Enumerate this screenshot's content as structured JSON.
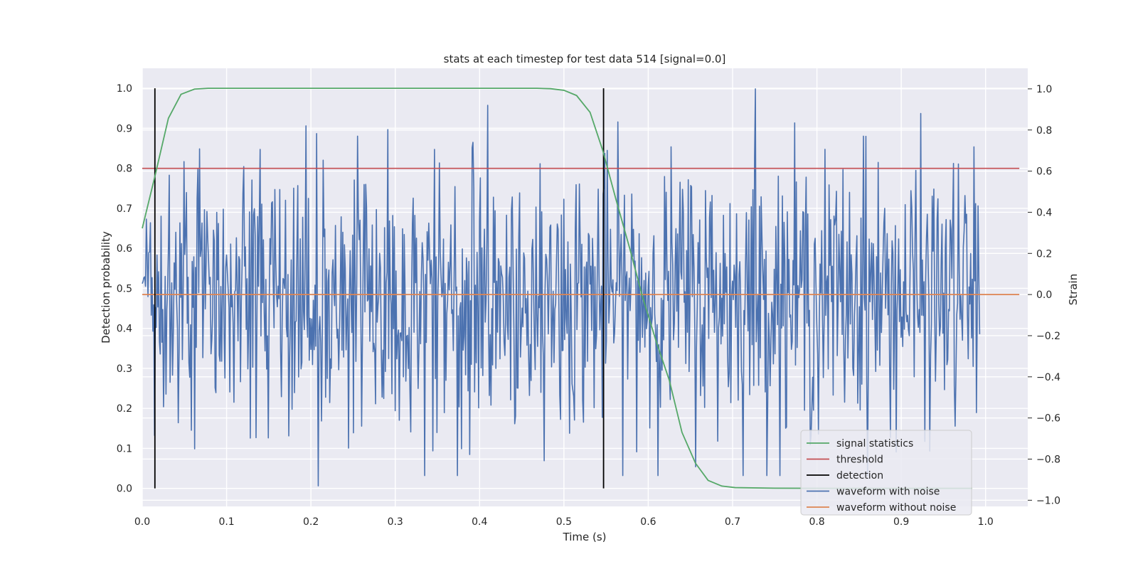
{
  "chart_data": {
    "type": "line",
    "title": "stats at each timestep for test data 514 [signal=0.0]",
    "xlabel": "Time (s)",
    "ylabel": "Detection probability",
    "y2label": "Strain",
    "xlim": [
      0.0,
      1.05
    ],
    "ylim": [
      -0.045,
      1.05
    ],
    "y2lim": [
      -1.03,
      1.1
    ],
    "x_ticks": [
      "0.0",
      "0.1",
      "0.2",
      "0.3",
      "0.4",
      "0.5",
      "0.6",
      "0.7",
      "0.8",
      "0.9",
      "1.0"
    ],
    "y_ticks": [
      "0.0",
      "0.1",
      "0.2",
      "0.3",
      "0.4",
      "0.5",
      "0.6",
      "0.7",
      "0.8",
      "0.9",
      "1.0"
    ],
    "y2_ticks": [
      "−1.0",
      "−0.8",
      "−0.6",
      "−0.4",
      "−0.2",
      "0.0",
      "0.2",
      "0.4",
      "0.6",
      "0.8",
      "1.0"
    ],
    "grid": true,
    "legend_position": "lower right",
    "colors": {
      "signal_statistics": "#55a868",
      "threshold": "#c44e52",
      "detection": "#000000",
      "waveform_with_noise": "#4c72b0",
      "waveform_without_noise": "#dd8452",
      "plot_background": "#eaeaf2",
      "grid": "#ffffff"
    },
    "series": [
      {
        "name": "signal statistics",
        "axis": "left",
        "x": [
          0.0,
          0.015,
          0.031,
          0.046,
          0.062,
          0.078,
          0.1,
          0.2,
          0.3,
          0.4,
          0.468,
          0.484,
          0.5,
          0.515,
          0.531,
          0.546,
          0.562,
          0.578,
          0.593,
          0.609,
          0.625,
          0.64,
          0.656,
          0.671,
          0.687,
          0.703,
          0.75,
          0.8,
          0.85,
          0.9,
          0.95,
          0.984
        ],
        "y": [
          0.65,
          0.78,
          0.925,
          0.985,
          0.998,
          1.0,
          1.0,
          1.0,
          1.0,
          1.0,
          1.0,
          0.999,
          0.995,
          0.982,
          0.94,
          0.845,
          0.72,
          0.6,
          0.48,
          0.37,
          0.27,
          0.14,
          0.063,
          0.02,
          0.006,
          0.002,
          0.0005,
          0.0003,
          0.0002,
          0.0002,
          0.0002,
          0.0002
        ]
      },
      {
        "name": "threshold",
        "axis": "left",
        "x": [
          0.0,
          1.04
        ],
        "y": [
          0.8,
          0.8
        ]
      },
      {
        "name": "detection",
        "axis": "left",
        "x": [
          0.015,
          0.547
        ],
        "y_range": [
          0.0,
          1.0
        ]
      },
      {
        "name": "waveform with noise",
        "axis": "right",
        "x_range": [
          0.0,
          0.993
        ],
        "samples": 1024,
        "y_min": -0.93,
        "y_max": 1.0,
        "y_std": 0.32,
        "peaks": [
          {
            "x": 0.209,
            "y": -0.93
          },
          {
            "x": 0.727,
            "y": 1.0
          },
          {
            "x": 0.194,
            "y": 0.82
          },
          {
            "x": 0.392,
            "y": 0.74
          },
          {
            "x": 0.255,
            "y": 0.77
          },
          {
            "x": 0.062,
            "y": -0.75
          },
          {
            "x": 0.345,
            "y": -0.76
          },
          {
            "x": 0.792,
            "y": -0.73
          },
          {
            "x": 0.855,
            "y": 0.77
          }
        ]
      },
      {
        "name": "waveform without noise",
        "axis": "right",
        "x": [
          0.0,
          1.04
        ],
        "y": [
          0.0,
          0.0
        ]
      }
    ]
  }
}
